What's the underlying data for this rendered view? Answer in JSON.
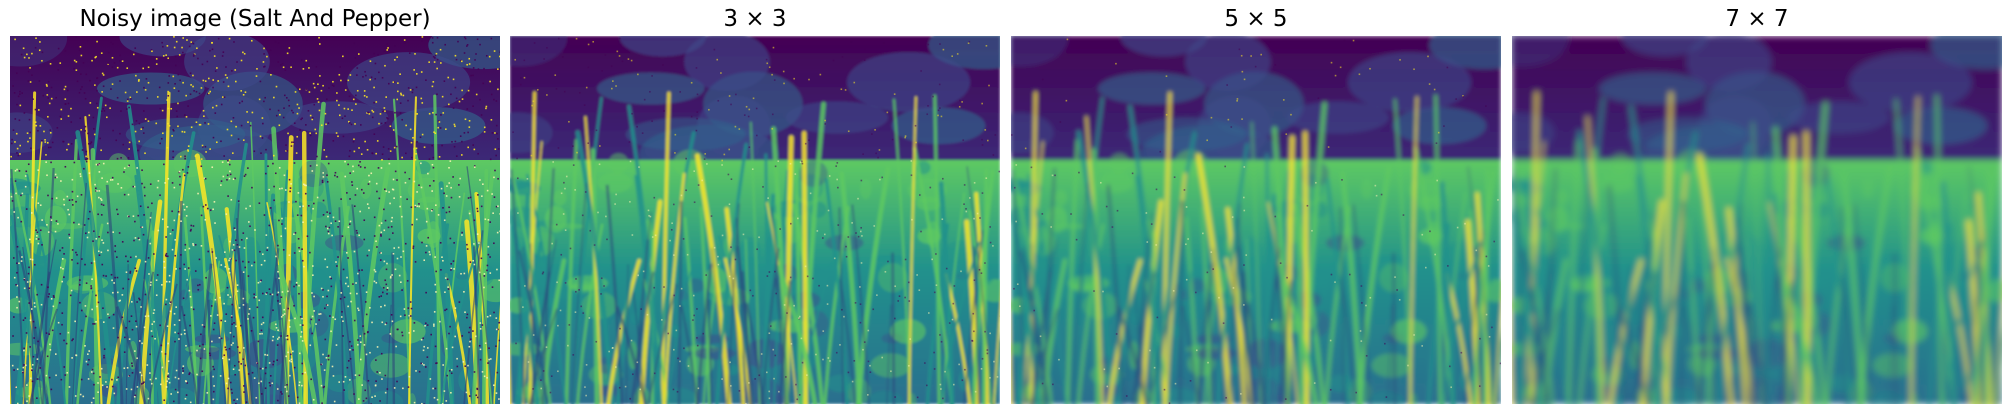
{
  "figure": {
    "panels": [
      {
        "title": "Noisy image (Salt And Pepper)",
        "blur": 0,
        "noise": "heavy"
      },
      {
        "title": "3 × 3",
        "blur": 1.2,
        "noise": "light"
      },
      {
        "title": "5 × 5",
        "blur": 2.2,
        "noise": "faint"
      },
      {
        "title": "7 × 7",
        "blur": 3.2,
        "noise": "none"
      }
    ],
    "colormap": [
      "#440154",
      "#3b528b",
      "#21918c",
      "#5ec962",
      "#fde725"
    ]
  }
}
